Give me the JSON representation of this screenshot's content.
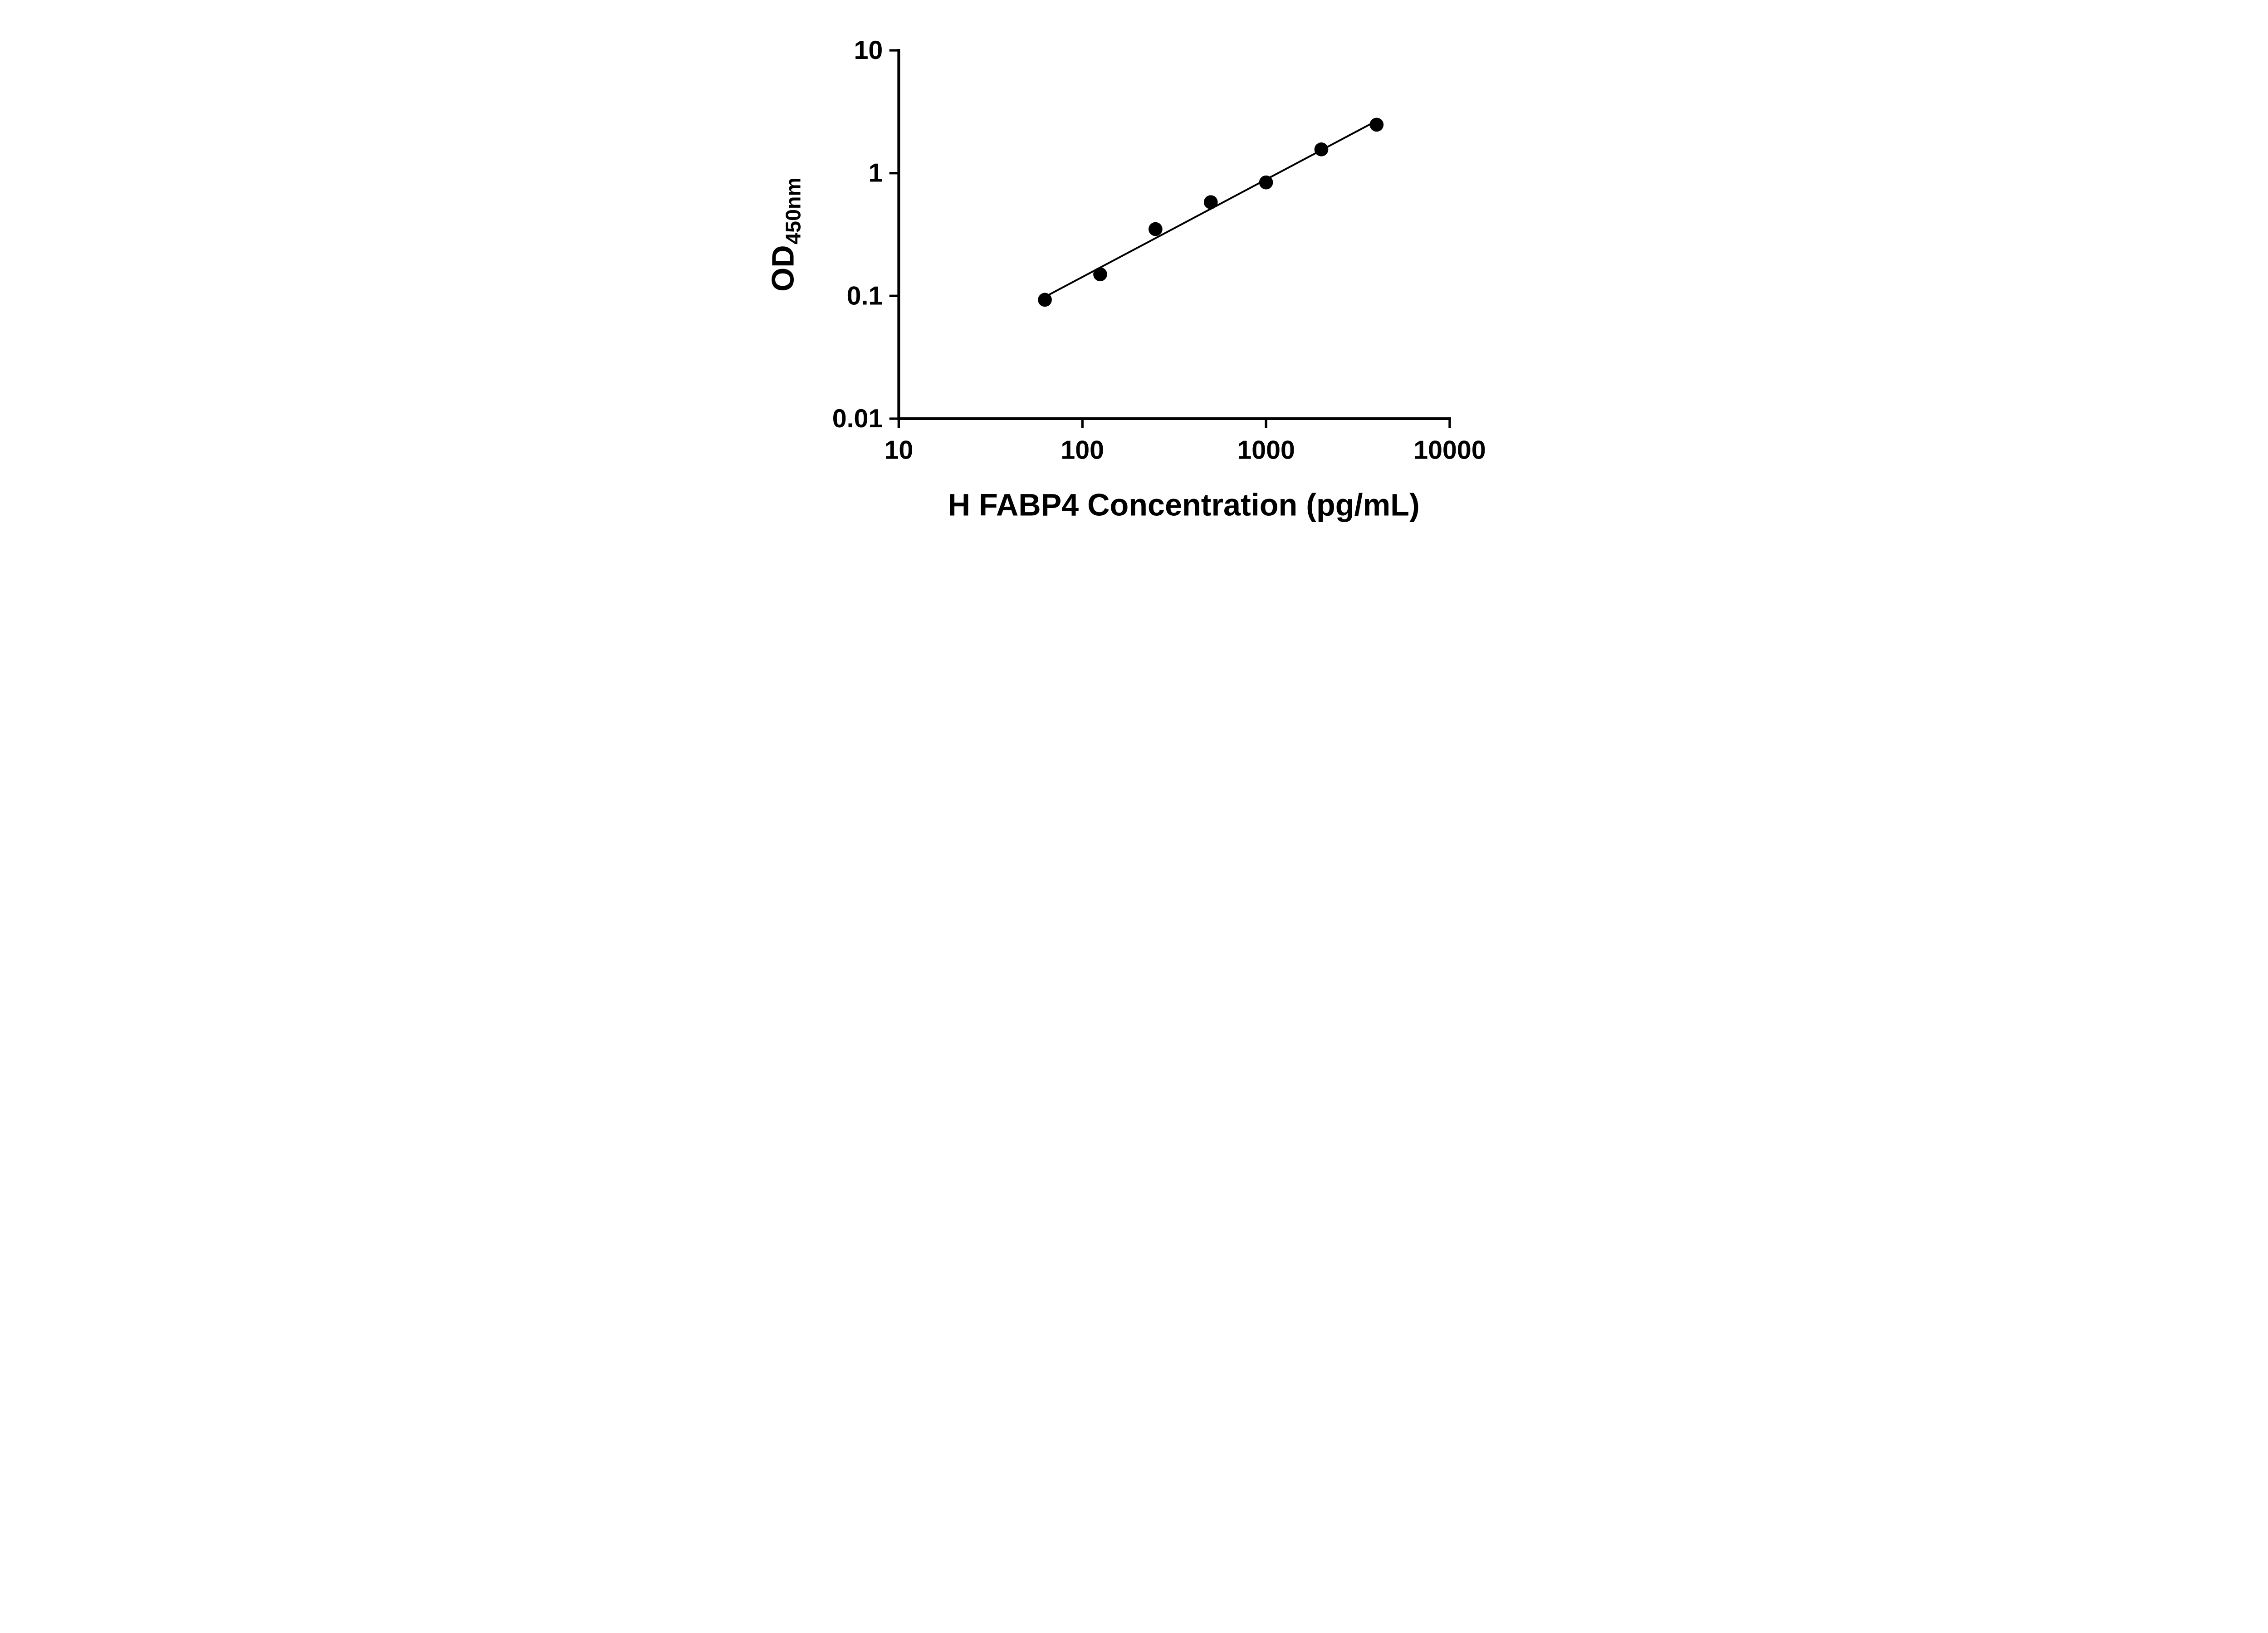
{
  "figure": {
    "background": "#ffffff",
    "description": "ELISA standard curve scatter plot with log-log axes and fitted trend line"
  },
  "chart_data": {
    "type": "scatter",
    "title": "",
    "xlabel": "H FABP4 Concentration (pg/mL)",
    "ylabel": {
      "main": "OD",
      "sub": "450nm"
    },
    "x_scale": "log",
    "y_scale": "log",
    "xlim": [
      10,
      10000
    ],
    "ylim": [
      0.01,
      10
    ],
    "x_ticks": [
      10,
      100,
      1000,
      10000
    ],
    "x_tick_labels": [
      "10",
      "100",
      "1000",
      "10000"
    ],
    "y_ticks": [
      10,
      1,
      0.1,
      0.01
    ],
    "y_tick_labels": [
      "10",
      "1",
      "0.1",
      "0.01"
    ],
    "grid": false,
    "legend": "none",
    "axis_color": "#000000",
    "series": [
      {
        "name": "standard-curve",
        "marker": "circle",
        "marker_color": "#000000",
        "line_color": "#000000",
        "trend": "linear-fit-in-log-log-space",
        "points": [
          {
            "x": 62.5,
            "y": 0.093
          },
          {
            "x": 125,
            "y": 0.15
          },
          {
            "x": 250,
            "y": 0.35
          },
          {
            "x": 500,
            "y": 0.58
          },
          {
            "x": 1000,
            "y": 0.84
          },
          {
            "x": 2000,
            "y": 1.56
          },
          {
            "x": 4000,
            "y": 2.48
          }
        ]
      }
    ]
  }
}
